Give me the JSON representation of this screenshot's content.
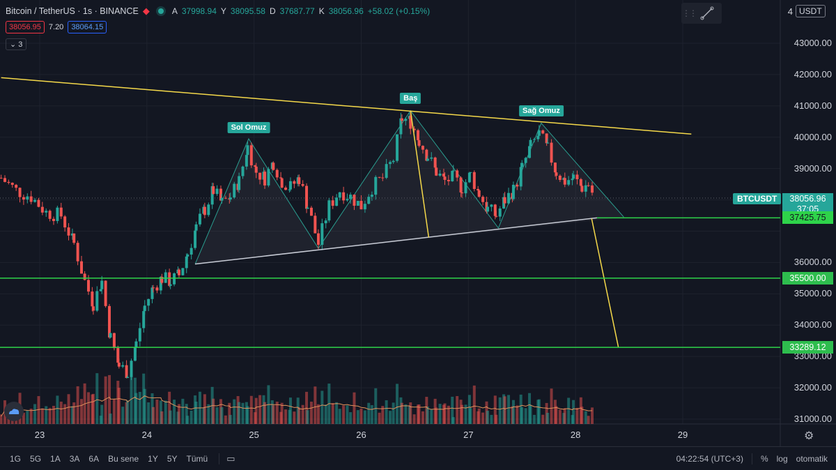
{
  "header": {
    "symbol": "Bitcoin / TetherUS · 1s · BINANCE",
    "o_label": "A",
    "o": "37998.94",
    "h_label": "Y",
    "h": "38095.58",
    "l_label": "D",
    "l": "37687.77",
    "c_label": "K",
    "c": "38056.96",
    "change": "+58.02 (+0.15%)",
    "bid": "38056.95",
    "spread": "7.20",
    "ask": "38064.15",
    "indicator_count": "3"
  },
  "currency_button": "USDT",
  "price_axis": {
    "top_label": "4",
    "labels": [
      "43000.00",
      "42000.00",
      "41000.00",
      "40000.00",
      "39000.00",
      "36000.00",
      "35000.00",
      "34000.00",
      "33000.00",
      "32000.00",
      "31000.00"
    ]
  },
  "time_axis": {
    "labels": [
      "23",
      "24",
      "25",
      "26",
      "27",
      "28",
      "29"
    ]
  },
  "current_price": {
    "symbol_tag": "BTCUSDT",
    "price": "38056.96",
    "countdown": "37:05"
  },
  "levels": [
    {
      "label": "37425.75",
      "value": 37425.75
    },
    {
      "label": "35500.00",
      "value": 35500
    },
    {
      "label": "33289.12",
      "value": 33289.12
    }
  ],
  "annotations": {
    "left_shoulder": "Sol Omuz",
    "head": "Baş",
    "right_shoulder": "Sağ Omuz"
  },
  "bottom_bar": {
    "ranges": [
      "1G",
      "5G",
      "1A",
      "3A",
      "6A",
      "Bu sene",
      "1Y",
      "5Y",
      "Tümü"
    ],
    "clock": "04:22:54 (UTC+3)",
    "percent": "%",
    "log": "log",
    "auto": "otomatik"
  },
  "colors": {
    "up": "#26a69a",
    "down": "#ef5350",
    "trendline": "#f5d94a",
    "level": "#2ebd4e",
    "background": "#131722"
  },
  "chart_data": {
    "type": "candlestick",
    "symbol": "BTCUSDT",
    "exchange": "BINANCE",
    "x_axis": "date (day of month)",
    "ylim": [
      30800,
      44000
    ],
    "xlim": [
      22.64,
      29.5
    ],
    "close_series": [
      [
        22.64,
        38700
      ],
      [
        22.78,
        38300
      ],
      [
        22.92,
        38100
      ],
      [
        23.06,
        37600
      ],
      [
        23.2,
        37500
      ],
      [
        23.32,
        36600
      ],
      [
        23.42,
        35400
      ],
      [
        23.5,
        34700
      ],
      [
        23.58,
        35400
      ],
      [
        23.66,
        33600
      ],
      [
        23.74,
        32700
      ],
      [
        23.82,
        32500
      ],
      [
        23.9,
        33400
      ],
      [
        23.98,
        34600
      ],
      [
        24.06,
        35200
      ],
      [
        24.14,
        35500
      ],
      [
        24.22,
        35400
      ],
      [
        24.3,
        35600
      ],
      [
        24.38,
        36300
      ],
      [
        24.46,
        37100
      ],
      [
        24.54,
        37700
      ],
      [
        24.62,
        38300
      ],
      [
        24.7,
        37900
      ],
      [
        24.78,
        38100
      ],
      [
        24.86,
        38600
      ],
      [
        24.94,
        39700
      ],
      [
        25.02,
        38900
      ],
      [
        25.1,
        38700
      ],
      [
        25.18,
        39200
      ],
      [
        25.26,
        38600
      ],
      [
        25.34,
        38400
      ],
      [
        25.42,
        38700
      ],
      [
        25.5,
        37800
      ],
      [
        25.6,
        36600
      ],
      [
        25.7,
        37800
      ],
      [
        25.8,
        38300
      ],
      [
        25.9,
        38100
      ],
      [
        26.0,
        37800
      ],
      [
        26.1,
        38400
      ],
      [
        26.2,
        38700
      ],
      [
        26.3,
        39300
      ],
      [
        26.38,
        40600
      ],
      [
        26.46,
        40500
      ],
      [
        26.54,
        39900
      ],
      [
        26.62,
        39400
      ],
      [
        26.7,
        38900
      ],
      [
        26.78,
        38600
      ],
      [
        26.86,
        38700
      ],
      [
        26.94,
        38400
      ],
      [
        27.02,
        38800
      ],
      [
        27.1,
        38200
      ],
      [
        27.18,
        37700
      ],
      [
        27.26,
        37500
      ],
      [
        27.34,
        38000
      ],
      [
        27.42,
        38300
      ],
      [
        27.5,
        39000
      ],
      [
        27.58,
        39700
      ],
      [
        27.66,
        40100
      ],
      [
        27.74,
        39600
      ],
      [
        27.82,
        38900
      ],
      [
        27.9,
        38600
      ],
      [
        27.98,
        38700
      ],
      [
        28.06,
        38400
      ],
      [
        28.12,
        38500
      ],
      [
        28.18,
        38057
      ]
    ],
    "volume_line_note": "volume histogram with moving average",
    "pattern": {
      "name": "head and shoulders",
      "left_shoulder": {
        "x": 24.95,
        "y": 39950
      },
      "head": {
        "x": 26.46,
        "y": 40850
      },
      "right_shoulder": {
        "x": 27.68,
        "y": 40450
      }
    },
    "upper_trendline": [
      [
        22.64,
        41900
      ],
      [
        29.08,
        40100
      ]
    ],
    "neckline": [
      [
        24.45,
        35950
      ],
      [
        28.2,
        37425.75
      ]
    ],
    "target_line": [
      [
        28.15,
        37400
      ],
      [
        28.4,
        33289.12
      ]
    ],
    "head_line": [
      [
        26.46,
        40850
      ],
      [
        26.63,
        36800
      ]
    ],
    "horizontal_levels": [
      37425.75,
      35500,
      33289.12
    ]
  }
}
